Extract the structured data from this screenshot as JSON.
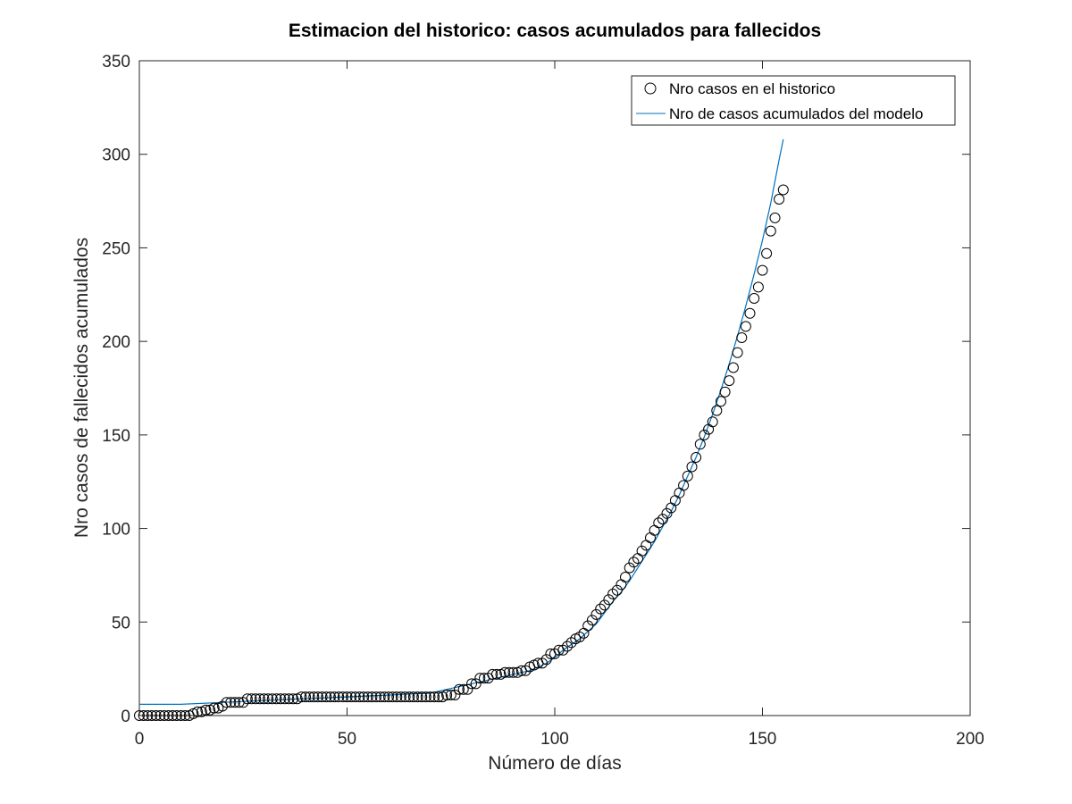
{
  "chart_data": {
    "type": "scatter",
    "title": "Estimacion del historico: casos acumulados para fallecidos",
    "xlabel": "Número de días",
    "ylabel": "Nro casos de fallecidos acumulados",
    "xlim": [
      0,
      200
    ],
    "ylim": [
      0,
      350
    ],
    "xticks": [
      0,
      50,
      100,
      150,
      200
    ],
    "yticks": [
      0,
      50,
      100,
      150,
      200,
      250,
      300,
      350
    ],
    "grid": false,
    "legend_position": "top-right",
    "series": [
      {
        "name": "Nro casos en el historico",
        "kind": "markers",
        "marker": "circle-open",
        "color": "#000000",
        "x": [
          0,
          1,
          2,
          3,
          4,
          5,
          6,
          7,
          8,
          9,
          10,
          11,
          12,
          13,
          14,
          15,
          16,
          17,
          18,
          19,
          20,
          21,
          22,
          23,
          24,
          25,
          26,
          27,
          28,
          29,
          30,
          31,
          32,
          33,
          34,
          35,
          36,
          37,
          38,
          39,
          40,
          41,
          42,
          43,
          44,
          45,
          46,
          47,
          48,
          49,
          50,
          51,
          52,
          53,
          54,
          55,
          56,
          57,
          58,
          59,
          60,
          61,
          62,
          63,
          64,
          65,
          66,
          67,
          68,
          69,
          70,
          71,
          72,
          73,
          74,
          75,
          76,
          77,
          78,
          79,
          80,
          81,
          82,
          83,
          84,
          85,
          86,
          87,
          88,
          89,
          90,
          91,
          92,
          93,
          94,
          95,
          96,
          97,
          98,
          99,
          100,
          101,
          102,
          103,
          104,
          105,
          106,
          107,
          108,
          109,
          110,
          111,
          112,
          113,
          114,
          115,
          116,
          117,
          118,
          119,
          120,
          121,
          122,
          123,
          124,
          125,
          126,
          127,
          128,
          129,
          130,
          131,
          132,
          133,
          134,
          135,
          136,
          137,
          138,
          139,
          140,
          141,
          142,
          143,
          144,
          145,
          146,
          147,
          148,
          149,
          150,
          151,
          152,
          153,
          154,
          155
        ],
        "y": [
          0,
          0,
          0,
          0,
          0,
          0,
          0,
          0,
          0,
          0,
          0,
          0,
          0,
          1,
          2,
          2,
          3,
          3,
          4,
          4,
          5,
          7,
          7,
          7,
          7,
          7,
          9,
          9,
          9,
          9,
          9,
          9,
          9,
          9,
          9,
          9,
          9,
          9,
          9,
          10,
          10,
          10,
          10,
          10,
          10,
          10,
          10,
          10,
          10,
          10,
          10,
          10,
          10,
          10,
          10,
          10,
          10,
          10,
          10,
          10,
          10,
          10,
          10,
          10,
          10,
          10,
          10,
          10,
          10,
          10,
          10,
          10,
          10,
          10,
          11,
          11,
          11,
          14,
          14,
          14,
          17,
          17,
          20,
          20,
          20,
          22,
          22,
          22,
          23,
          23,
          23,
          23,
          24,
          24,
          26,
          27,
          28,
          28,
          30,
          33,
          33,
          35,
          35,
          37,
          39,
          41,
          42,
          44,
          48,
          51,
          54,
          57,
          59,
          62,
          65,
          67,
          70,
          74,
          79,
          82,
          84,
          88,
          91,
          95,
          99,
          103,
          105,
          108,
          111,
          115,
          119,
          123,
          128,
          133,
          138,
          145,
          150,
          153,
          157,
          163,
          168,
          173,
          179,
          186,
          194,
          202,
          208,
          215,
          223,
          229,
          238,
          247,
          259,
          266,
          276,
          281
        ]
      },
      {
        "name": "Nro de casos acumulados del modelo",
        "kind": "line",
        "color": "#0072BD",
        "x": [
          0,
          10,
          20,
          30,
          40,
          50,
          60,
          70,
          72,
          74,
          76,
          78,
          80,
          82,
          84,
          86,
          88,
          90,
          92,
          94,
          96,
          98,
          100,
          102,
          104,
          106,
          108,
          110,
          112,
          114,
          116,
          118,
          120,
          122,
          124,
          126,
          128,
          130,
          132,
          134,
          136,
          138,
          140,
          142,
          144,
          146,
          148,
          150,
          152,
          154,
          155
        ],
        "y": [
          6,
          6,
          7,
          8,
          9,
          10,
          11,
          12,
          13,
          14,
          15,
          16,
          17,
          18,
          19,
          20,
          21,
          22,
          23,
          24,
          26,
          28,
          31,
          35,
          38,
          41,
          45,
          49,
          55,
          61,
          66,
          72,
          79,
          86,
          93,
          101,
          109,
          118,
          128,
          138,
          149,
          161,
          174,
          188,
          203,
          219,
          236,
          254,
          274,
          297,
          308
        ]
      }
    ]
  }
}
